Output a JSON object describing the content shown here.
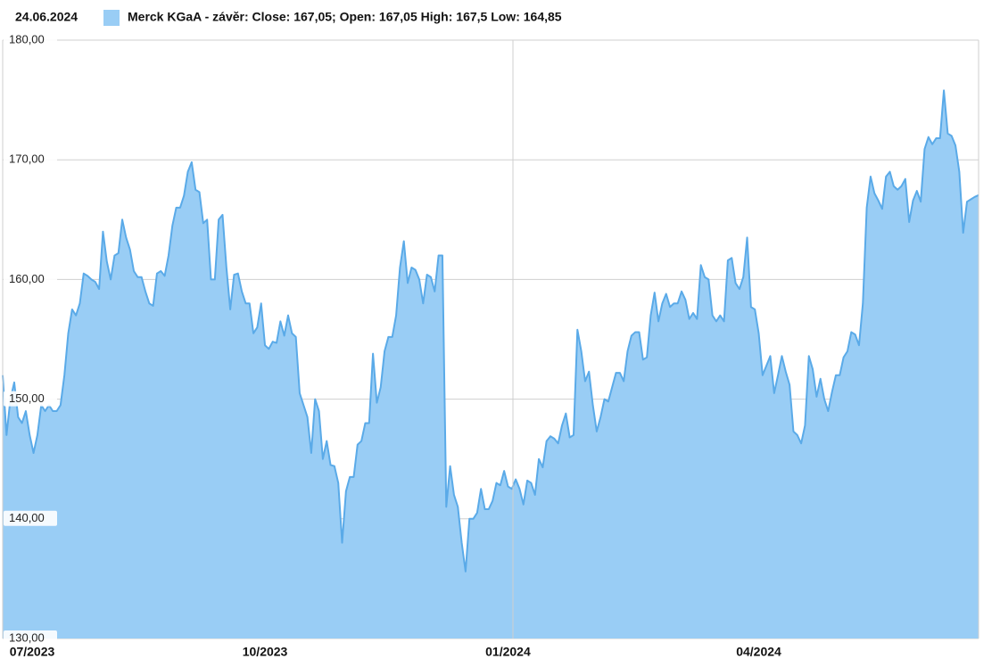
{
  "chart_data": {
    "type": "area",
    "date": "24.06.2024",
    "series": [
      {
        "name": "Merck KGaA - závěr: Close: 167,05; Open: 167,05 High: 167,5 Low: 164,85",
        "color": "#99cdf5",
        "line_color": "#5aaae8",
        "values": [
          152,
          147,
          150,
          151.4,
          148.5,
          148,
          149,
          147,
          145.5,
          147,
          149.5,
          149,
          149.5,
          149,
          149,
          149.5,
          152,
          155.5,
          157.5,
          157,
          158,
          160.5,
          160.3,
          160,
          159.8,
          159.2,
          164,
          161.5,
          160,
          162,
          162.2,
          165,
          163.5,
          162.5,
          160.7,
          160.2,
          160.2,
          159,
          158,
          157.8,
          160.5,
          160.7,
          160.3,
          162,
          164.5,
          166,
          166,
          167,
          169,
          169.8,
          167.5,
          167.3,
          164.7,
          165,
          160,
          160,
          165,
          165.4,
          161,
          157.5,
          160.4,
          160.5,
          159,
          158,
          158,
          155.5,
          156,
          158,
          154.5,
          154.2,
          154.8,
          154.7,
          156.5,
          155.3,
          157,
          155.5,
          155.2,
          150.5,
          149.5,
          148.5,
          145.5,
          150,
          149,
          145,
          146.5,
          144.5,
          144.4,
          143,
          138,
          142.3,
          143.5,
          143.5,
          146.2,
          146.5,
          148,
          148,
          153.8,
          149.7,
          151,
          154,
          155.2,
          155.2,
          157,
          161,
          163.2,
          159.7,
          161,
          160.8,
          160,
          158,
          160.4,
          160.2,
          159,
          162,
          162,
          141,
          144.4,
          142,
          141,
          138,
          135.6,
          140,
          140,
          140.5,
          142.5,
          140.8,
          140.8,
          141.5,
          143,
          142.8,
          144,
          142.7,
          142.5,
          143.3,
          142.5,
          141.2,
          143.2,
          143,
          142,
          145,
          144.3,
          146.5,
          146.9,
          146.7,
          146.3,
          147.8,
          148.8,
          146.8,
          147,
          155.8,
          154,
          151.5,
          152.3,
          149.5,
          147.3,
          148.5,
          150,
          149.8,
          151,
          152.2,
          152.2,
          151.5,
          154,
          155.3,
          155.6,
          155.6,
          153.3,
          153.5,
          157,
          158.9,
          156.5,
          158,
          158.8,
          157.7,
          158,
          158,
          159,
          158.3,
          156.7,
          157.2,
          156.7,
          161.2,
          160.2,
          160,
          157,
          156.5,
          157,
          156.5,
          161.6,
          161.8,
          159.7,
          159.2,
          160.2,
          163.5,
          157.7,
          157.5,
          155.5,
          152,
          152.8,
          153.6,
          150.5,
          152,
          153.6,
          152.3,
          151.2,
          147.3,
          147,
          146.3,
          147.8,
          153.6,
          152.5,
          150.2,
          151.7,
          150,
          149,
          150.6,
          152,
          152,
          153.5,
          154,
          155.6,
          155.4,
          154.5,
          158,
          166,
          168.6,
          167.2,
          166.6,
          165.9,
          168.6,
          169,
          167.8,
          167.5,
          167.8,
          168.4,
          164.8,
          166.6,
          167.4,
          166.5,
          170.9,
          171.9,
          171.3,
          171.8,
          171.8,
          175.8,
          172.2,
          172,
          171.2,
          169,
          163.9,
          166.5,
          166.7,
          166.9,
          167.05
        ]
      }
    ],
    "categories": [
      null,
      null,
      null,
      null,
      null,
      null,
      null,
      "07/2023",
      null,
      null,
      null,
      null,
      null,
      null,
      null,
      null,
      null,
      null,
      null,
      null,
      null,
      null,
      null,
      null,
      null,
      null,
      null,
      null,
      null,
      null,
      null,
      null,
      null,
      null,
      null,
      null,
      null,
      null,
      null,
      null,
      null,
      null,
      null,
      null,
      null,
      null,
      null,
      null,
      null,
      null,
      null,
      null,
      null,
      null,
      null,
      null,
      null,
      null,
      null,
      null,
      null,
      null,
      null,
      null,
      null,
      null,
      null,
      null,
      "10/2023",
      null,
      null,
      null,
      null,
      null,
      null,
      null,
      null,
      null,
      null,
      null,
      null,
      null,
      null,
      null,
      null,
      null,
      null,
      null,
      null,
      null,
      null,
      null,
      null,
      null,
      null,
      null,
      null,
      null,
      null,
      null,
      null,
      null,
      null,
      null,
      null,
      null,
      null,
      null,
      null,
      null,
      null,
      null,
      null,
      null,
      null,
      null,
      null,
      null,
      null,
      null,
      null,
      null,
      null,
      null,
      null,
      null,
      null,
      null,
      null,
      null,
      null,
      "01/2024",
      null,
      null,
      null,
      null,
      null,
      null,
      null,
      null,
      null,
      null,
      null,
      null,
      null,
      null,
      null,
      null,
      null,
      null,
      null,
      null,
      null,
      null,
      null,
      null,
      null,
      null,
      null,
      null,
      null,
      null,
      null,
      null,
      null,
      null,
      null,
      null,
      null,
      null,
      null,
      null,
      null,
      null,
      null,
      null,
      null,
      null,
      null,
      null,
      null,
      null,
      null,
      null,
      null,
      null,
      null,
      null,
      null,
      null,
      null,
      null,
      null,
      null,
      null,
      null,
      "04/2024",
      null,
      null,
      null,
      null,
      null,
      null,
      null,
      null,
      null,
      null,
      null,
      null,
      null,
      null,
      null,
      null,
      null,
      null,
      null,
      null,
      null,
      null,
      null,
      null,
      null,
      null,
      null,
      null,
      null,
      null,
      null,
      null,
      null,
      null,
      null,
      null,
      null,
      null,
      null,
      null,
      null,
      null,
      null,
      null,
      null,
      null,
      null,
      null,
      null,
      null,
      null,
      null,
      null,
      null,
      null,
      null,
      null
    ],
    "ylim": [
      130,
      180
    ],
    "yticks": [
      {
        "value": 130,
        "label": "130,00"
      },
      {
        "value": 140,
        "label": "140,00"
      },
      {
        "value": 150,
        "label": "150,00"
      },
      {
        "value": 160,
        "label": "160,00"
      },
      {
        "value": 170,
        "label": "170,00"
      },
      {
        "value": 180,
        "label": "180,00"
      }
    ],
    "grid": true
  }
}
